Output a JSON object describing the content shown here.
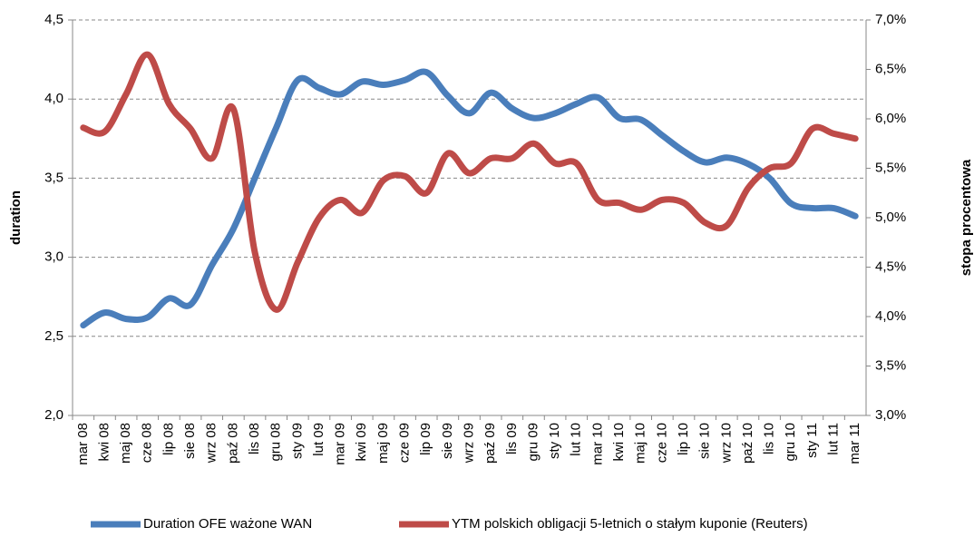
{
  "chart_data": {
    "type": "line",
    "y_title": "duration",
    "y2_title": "stopa procentowa",
    "categories": [
      "mar 08",
      "kwi 08",
      "maj 08",
      "cze 08",
      "lip 08",
      "sie 08",
      "wrz 08",
      "paź 08",
      "lis 08",
      "gru 08",
      "sty 09",
      "lut 09",
      "mar 09",
      "kwi 09",
      "maj 09",
      "cze 09",
      "lip 09",
      "sie 09",
      "wrz 09",
      "paź 09",
      "lis 09",
      "gru 09",
      "sty 10",
      "lut 10",
      "mar 10",
      "kwi 10",
      "maj 10",
      "cze 10",
      "lip 10",
      "sie 10",
      "wrz 10",
      "paź 10",
      "lis 10",
      "gru 10",
      "sty 11",
      "lut 11",
      "mar 11"
    ],
    "series": [
      {
        "name": "Duration OFE ważone WAN",
        "color": "#4a7ebb",
        "axis": "y",
        "values": [
          2.57,
          2.65,
          2.61,
          2.62,
          2.74,
          2.7,
          2.95,
          3.18,
          3.5,
          3.82,
          4.12,
          4.07,
          4.03,
          4.11,
          4.09,
          4.12,
          4.17,
          4.02,
          3.91,
          4.04,
          3.94,
          3.88,
          3.91,
          3.97,
          4.01,
          3.88,
          3.87,
          3.77,
          3.67,
          3.6,
          3.63,
          3.59,
          3.5,
          3.34,
          3.31,
          3.31,
          3.26
        ]
      },
      {
        "name": "YTM polskich obligacji 5-letnich o stałym kuponie (Reuters)",
        "color": "#be4b48",
        "axis": "y2",
        "values": [
          5.91,
          5.87,
          6.25,
          6.65,
          6.15,
          5.9,
          5.6,
          6.1,
          4.65,
          4.07,
          4.55,
          5.0,
          5.18,
          5.05,
          5.38,
          5.42,
          5.25,
          5.65,
          5.45,
          5.6,
          5.6,
          5.75,
          5.55,
          5.55,
          5.18,
          5.15,
          5.08,
          5.18,
          5.15,
          4.95,
          4.92,
          5.3,
          5.5,
          5.55,
          5.9,
          5.85,
          5.8
        ]
      }
    ],
    "ylim": [
      2,
      4.5
    ],
    "yticks": [
      {
        "value": 2,
        "label": "2,0"
      },
      {
        "value": 2.5,
        "label": "2,5"
      },
      {
        "value": 3,
        "label": "3,0"
      },
      {
        "value": 3.5,
        "label": "3,5"
      },
      {
        "value": 4,
        "label": "4,0"
      },
      {
        "value": 4.5,
        "label": "4,5"
      }
    ],
    "y2lim": [
      3,
      7
    ],
    "y2ticks": [
      {
        "value": 3,
        "label": "3,0%"
      },
      {
        "value": 3.5,
        "label": "3,5%"
      },
      {
        "value": 4,
        "label": "4,0%"
      },
      {
        "value": 4.5,
        "label": "4,5%"
      },
      {
        "value": 5,
        "label": "5,0%"
      },
      {
        "value": 5.5,
        "label": "5,5%"
      },
      {
        "value": 6,
        "label": "6,0%"
      },
      {
        "value": 6.5,
        "label": "6,5%"
      },
      {
        "value": 7,
        "label": "7,0%"
      }
    ],
    "grid": true,
    "legend": "bottom"
  }
}
